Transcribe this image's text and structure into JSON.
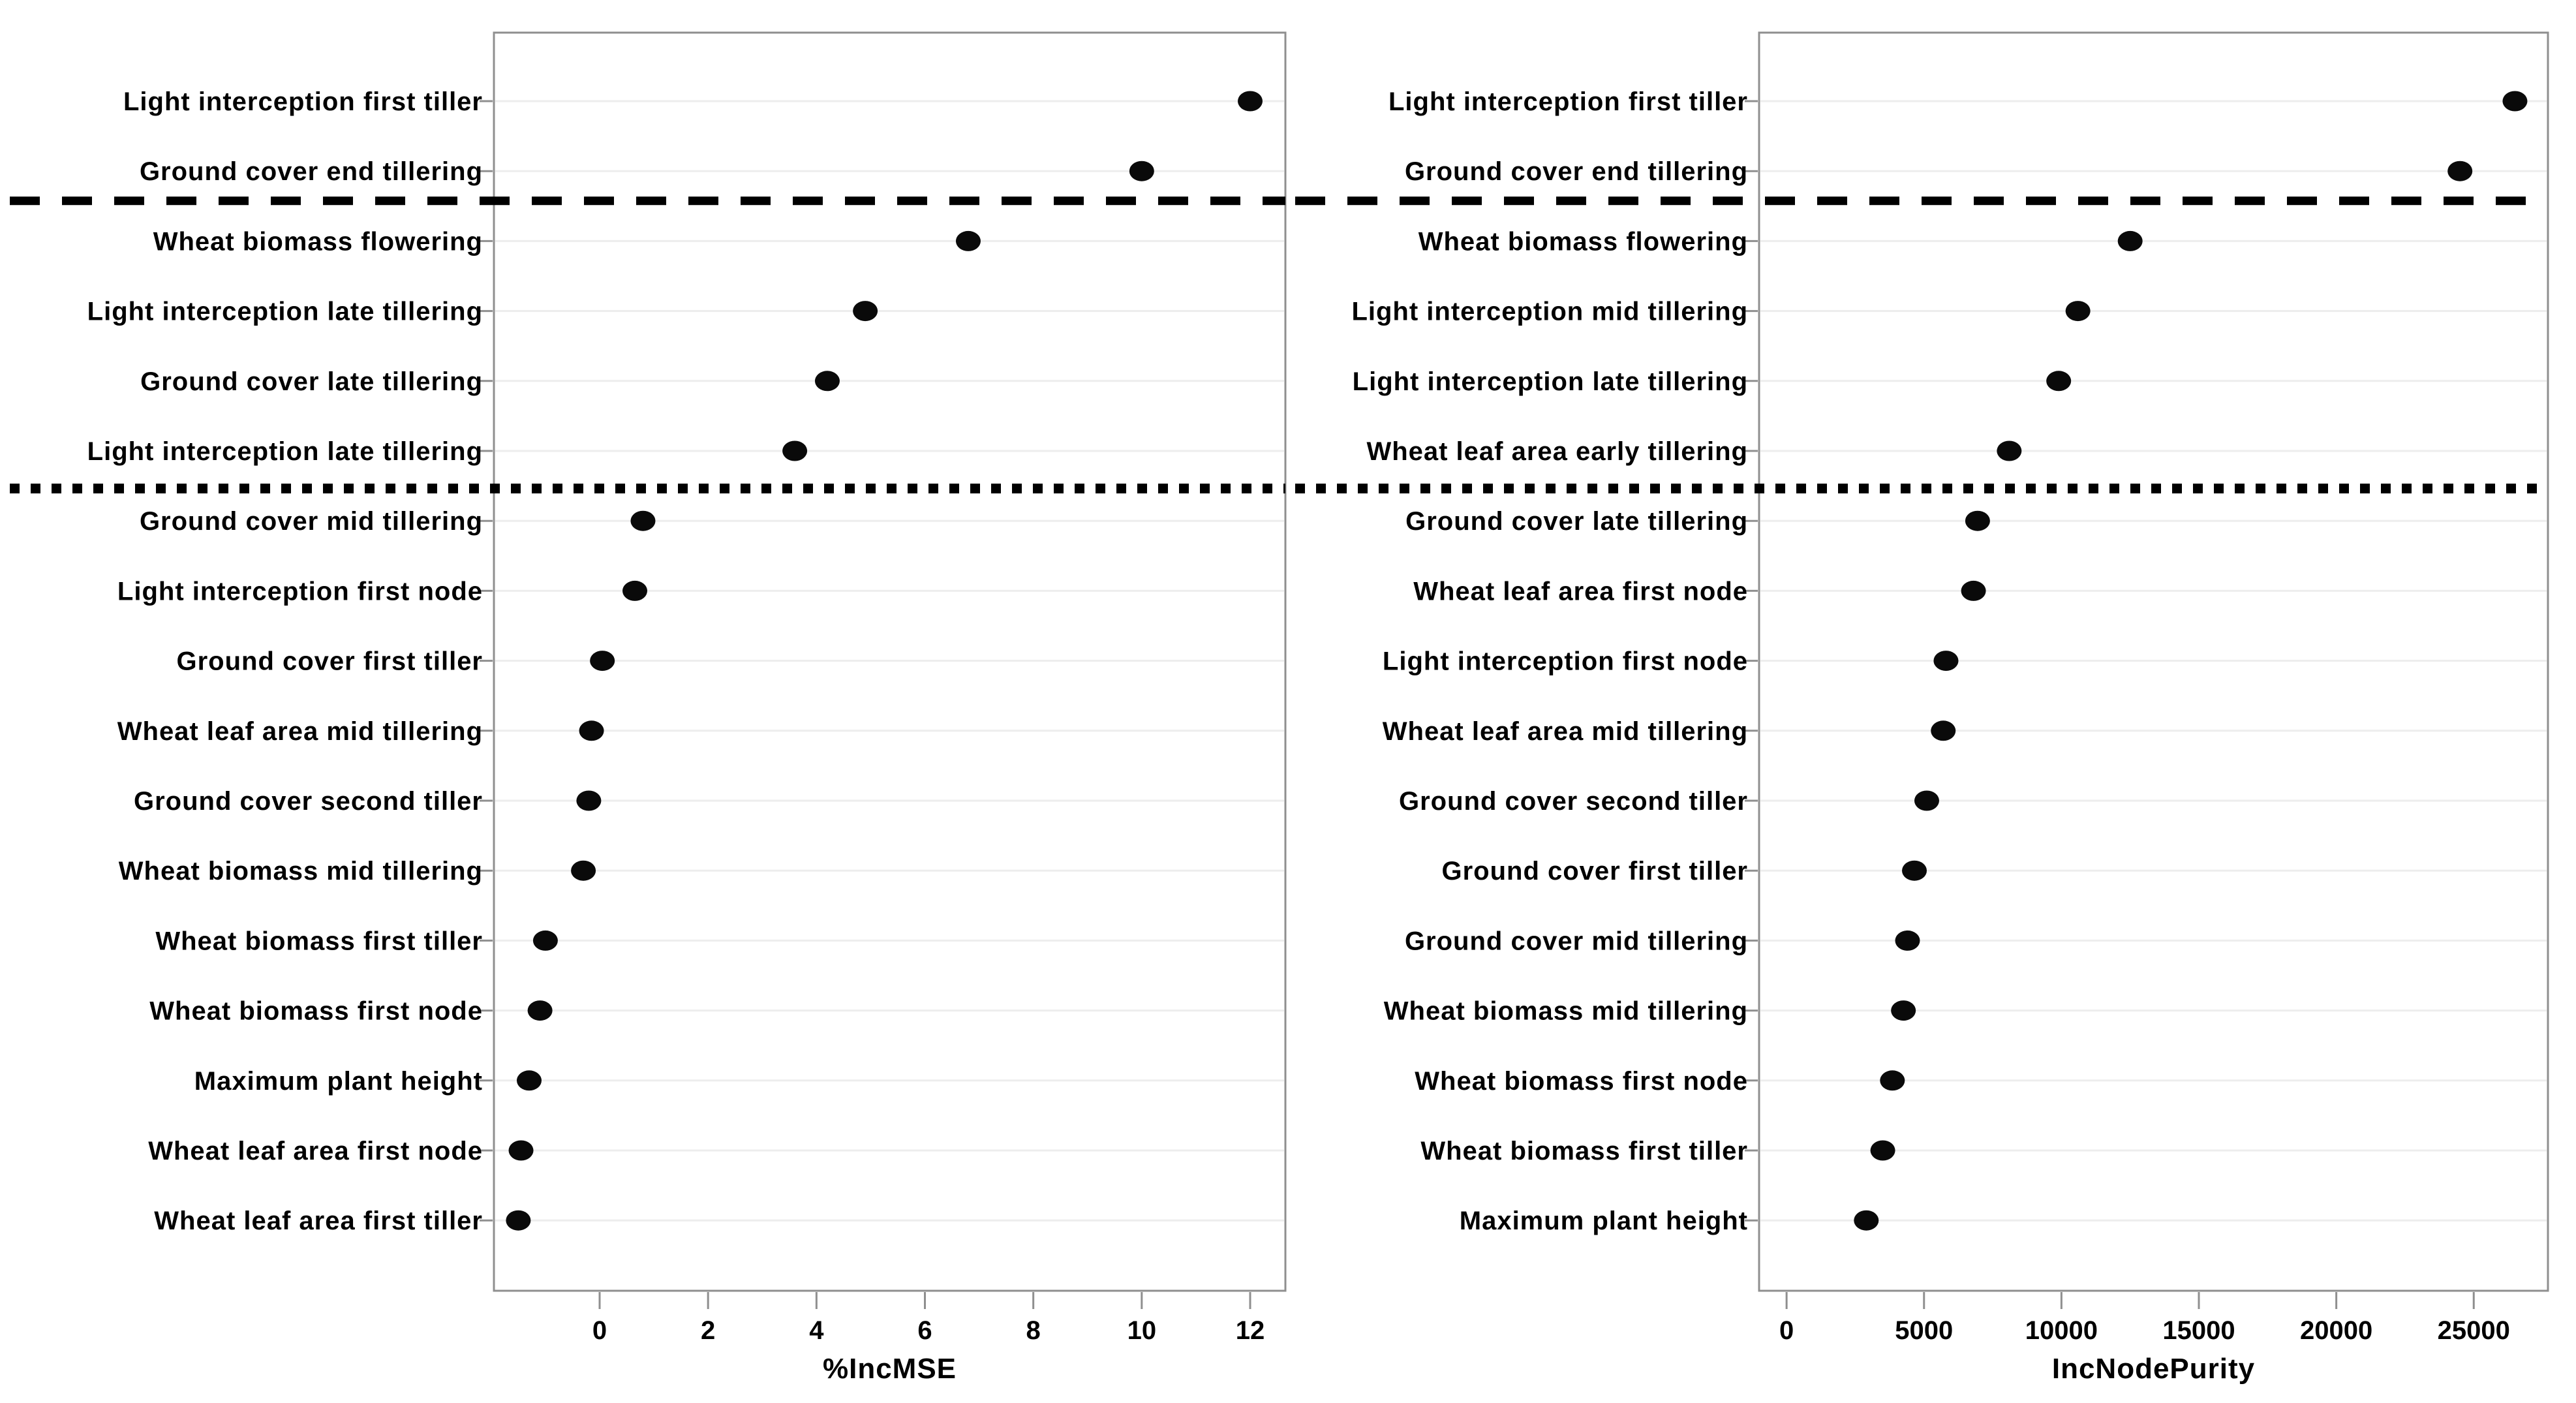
{
  "figure": {
    "description": "Random forest variable importance dot plots, two panels",
    "background": "#ffffff",
    "box_border_color": "#8f8f8f",
    "grid_color": "#ededed",
    "axis_tick_color": "#8f8f8f",
    "dot_color": "#0a0a0a",
    "separator_color": "#000000",
    "text_color": "#000000"
  },
  "chart_data": [
    {
      "type": "scatter",
      "variant": "dot-importance-plot",
      "title": "",
      "xlabel": "%IncMSE",
      "ylabel": "",
      "xlim": [
        -1.95,
        12.65
      ],
      "xticks": [
        0,
        2,
        4,
        6,
        8,
        10,
        12
      ],
      "grid": true,
      "legend": "none",
      "dashed_separator_after_index": 1,
      "dotted_separator_after_index": 5,
      "categories": [
        "Light interception first tiller",
        "Ground cover end tillering",
        "Wheat biomass flowering",
        "Light interception late tillering",
        "Ground cover late tillering",
        "Light interception late tillering",
        "Ground cover mid tillering",
        "Light interception first node",
        "Ground cover first tiller",
        "Wheat leaf area mid tillering",
        "Ground cover second tiller",
        "Wheat biomass mid tillering",
        "Wheat biomass first tiller",
        "Wheat biomass first node",
        "Maximum plant height",
        "Wheat leaf area first node",
        "Wheat leaf area first tiller"
      ],
      "values": [
        12.0,
        10.0,
        6.8,
        4.9,
        4.2,
        3.6,
        0.8,
        0.65,
        0.05,
        -0.15,
        -0.2,
        -0.3,
        -1.0,
        -1.1,
        -1.3,
        -1.45,
        -1.5
      ]
    },
    {
      "type": "scatter",
      "variant": "dot-importance-plot",
      "title": "",
      "xlabel": "IncNodePurity",
      "ylabel": "",
      "xlim": [
        -1000,
        27700
      ],
      "xticks": [
        0,
        5000,
        10000,
        15000,
        20000,
        25000
      ],
      "grid": true,
      "legend": "none",
      "dashed_separator_after_index": 1,
      "dotted_separator_after_index": 5,
      "categories": [
        "Light interception first tiller",
        "Ground cover end tillering",
        "Wheat biomass flowering",
        "Light interception mid tillering",
        "Light interception late tillering",
        "Wheat leaf area early tillering",
        "Ground cover late tillering",
        "Wheat leaf area first node",
        "Light interception first node",
        "Wheat leaf area mid tillering",
        "Ground cover second tiller",
        "Ground cover first tiller",
        "Ground cover mid tillering",
        "Wheat biomass mid tillering",
        "Wheat biomass first node",
        "Wheat biomass first tiller",
        "Maximum plant height"
      ],
      "values": [
        26500,
        24500,
        12500,
        10600,
        9900,
        8100,
        6950,
        6800,
        5800,
        5700,
        5100,
        4650,
        4400,
        4250,
        3850,
        3500,
        2900
      ]
    }
  ]
}
